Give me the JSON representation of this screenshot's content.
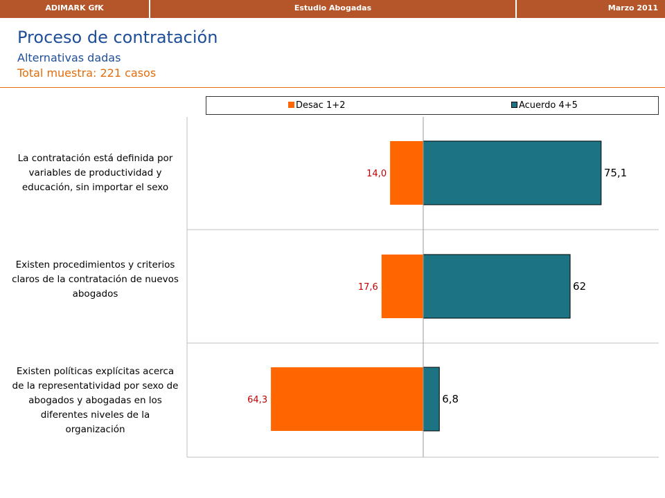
{
  "header": {
    "left": "ADIMARK GfK",
    "center": "Estudio Abogadas",
    "right": "Marzo 2011",
    "bar_color": "#b5562a"
  },
  "page": {
    "title": "Proceso de contratación",
    "subtitle": "Alternativas dadas",
    "sample": "Total muestra: 221 casos"
  },
  "chart_data": {
    "type": "bar",
    "orientation": "horizontal-diverging",
    "categories": [
      "La contratación está definida por variables de productividad y educación, sin importar el sexo",
      "Existen procedimientos y criterios claros  de la contratación de nuevos abogados",
      "Existen políticas explícitas acerca de la representatividad por sexo de abogados y abogadas en los diferentes niveles de la organización"
    ],
    "series": [
      {
        "name": "Desac 1+2",
        "values": [
          14.0,
          17.6,
          64.3
        ],
        "labels": [
          "14,0",
          "17,6",
          "64,3"
        ],
        "color": "#ff6600",
        "label_color": "#c00000"
      },
      {
        "name": "Acuerdo 4+5",
        "values": [
          75.1,
          62,
          6.8
        ],
        "labels": [
          "75,1",
          "62",
          "6,8"
        ],
        "color": "#1b7383",
        "label_color": "#000000"
      }
    ],
    "legend_position": "top",
    "grid": false
  }
}
